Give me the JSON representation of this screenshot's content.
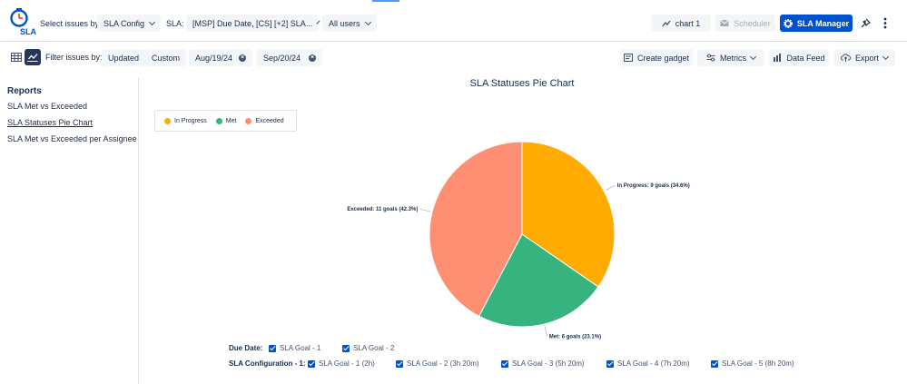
{
  "header": {
    "logo_text": "SLA",
    "select_issues_label": "Select issues by:",
    "select_issues_value": "SLA Config",
    "sla_label": "SLA:",
    "sla_value": "[MSP] Due Date, [CS] [+2] SLA...",
    "users_value": "All users",
    "chart_button": "chart 1",
    "scheduler_button": "Scheduler",
    "sla_manager_button": "SLA Manager"
  },
  "toolbar": {
    "filter_label": "Filter issues by:",
    "updated_button": "Updated",
    "custom_button": "Custom",
    "date_from": "Aug/19/24",
    "date_to": "Sep/20/24",
    "create_gadget": "Create gadget",
    "metrics": "Metrics",
    "data_feed": "Data Feed",
    "export": "Export"
  },
  "sidebar": {
    "title": "Reports",
    "items": [
      {
        "label": "SLA Met vs Exceeded"
      },
      {
        "label": "SLA Statuses Pie Chart"
      },
      {
        "label": "SLA Met vs Exceeded per Assignee"
      }
    ]
  },
  "chart_data": {
    "type": "pie",
    "title": "SLA Statuses Pie Chart",
    "legend_position": "top-left",
    "slices": [
      {
        "name": "In Progress",
        "value": 9,
        "percent": 34.6,
        "color": "#ffab00",
        "label": "In Progress: 9 goals (34.6%)"
      },
      {
        "name": "Met",
        "value": 6,
        "percent": 23.1,
        "color": "#36b37e",
        "label": "Met: 6 goals (23.1%)"
      },
      {
        "name": "Exceeded",
        "value": 11,
        "percent": 42.3,
        "color": "#ff8f73",
        "label": "Exceeded: 11 goals (42.3%)"
      }
    ]
  },
  "filters": {
    "due_date_label": "Due Date:",
    "due_date_goals": [
      "SLA Goal - 1",
      "SLA Goal - 2"
    ],
    "config_label": "SLA Configuration - 1:",
    "config_goals": [
      "SLA Goal - 1 (2h)",
      "SLA Goal - 2 (3h 20m)",
      "SLA Goal - 3 (5h 20m)",
      "SLA Goal - 4 (7h 20m)",
      "SLA Goal - 5 (8h 20m)"
    ]
  },
  "colors": {
    "primary": "#0052cc",
    "in_progress": "#ffab00",
    "met": "#36b37e",
    "exceeded": "#ff8f73"
  }
}
